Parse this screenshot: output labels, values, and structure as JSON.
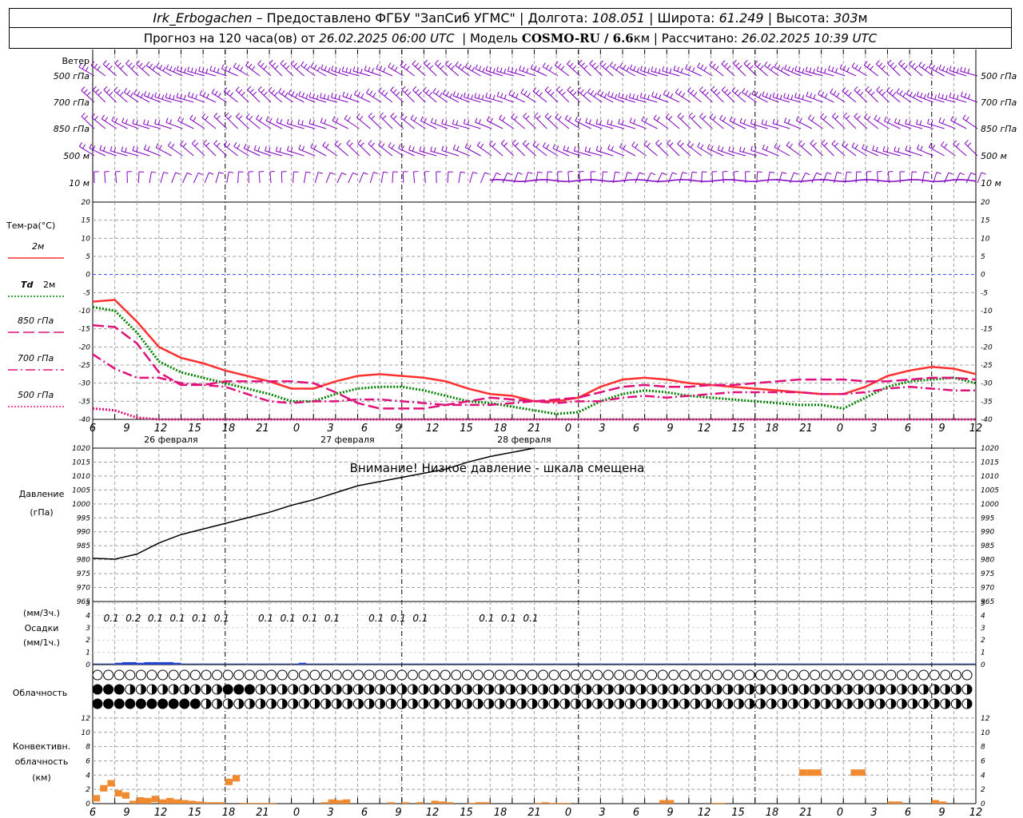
{
  "header": {
    "station": "Irk_Erbogachen",
    "dash": "–",
    "provider": "Предоставлено ФГБУ \"ЗапСиб УГМС\"",
    "lon_label": "Долгота:",
    "lon": "108.051",
    "lat_label": "Широта:",
    "lat": "61.249",
    "alt_label": "Высота:",
    "alt": "303",
    "alt_unit": "м",
    "forecast_label": "Прогноз на 120 часа(ов) от",
    "forecast_from": "26.02.2025 06:00 UTC",
    "model_label": "Модель",
    "model": "COSMO-RU / 6.6",
    "model_unit": "км",
    "calc_label": "Рассчитано:",
    "calc": "26.02.2025 10:39 UTC",
    "sep": "|"
  },
  "time_axis": {
    "hours": [
      "6",
      "9",
      "12",
      "15",
      "18",
      "21",
      "0",
      "3",
      "6",
      "9",
      "12",
      "15",
      "18",
      "21",
      "0",
      "3",
      "6",
      "9",
      "12",
      "15",
      "18",
      "21",
      "0",
      "3",
      "6",
      "9",
      "12"
    ],
    "dates": [
      "26 февраля",
      "27 февраля",
      "28 февраля"
    ]
  },
  "wind_panel": {
    "title": "Ветер",
    "levels": [
      "500 гПа",
      "700 гПа",
      "850 гПа",
      "500 м",
      "10  м"
    ],
    "color": "#8000c0"
  },
  "temp_panel": {
    "title": "Тем-ра(°C)",
    "legend": [
      {
        "label": "2м",
        "color": "#ff3030"
      },
      {
        "label": "Td  2м",
        "label_a": "Td",
        "label_b": "2м",
        "color": "#008000"
      },
      {
        "label": "850 гПа",
        "color": "#e0107a"
      },
      {
        "label": "700 гПа",
        "color": "#e0107a"
      },
      {
        "label": "500 гПа",
        "color": "#e0107a"
      }
    ],
    "yticks": [
      "20",
      "15",
      "10",
      "5",
      "0",
      "-5",
      "-10",
      "-15",
      "-20",
      "-25",
      "-30",
      "-35",
      "-40"
    ]
  },
  "pressure_panel": {
    "title1": "Давление",
    "title2": "(гПа)",
    "warning": "Внимание! Низкое давление - шкала смещена",
    "yticks": [
      "1020",
      "1015",
      "1010",
      "1005",
      "1000",
      "995",
      "990",
      "985",
      "980",
      "975",
      "970",
      "965"
    ]
  },
  "precip_panel": {
    "title1": "(мм/3ч.)",
    "title2": "Осадки",
    "title3": "(мм/1ч.)",
    "yticks": [
      "5",
      "4",
      "3",
      "2",
      "1",
      "0"
    ],
    "amounts": [
      "0.1",
      "0.2",
      "0.1",
      "0.1",
      "0.1",
      "0.1",
      "0.1",
      "0.1",
      "0.1",
      "0.1",
      "0.1",
      "0.1",
      "0.1",
      "0.1",
      "0.1",
      "0.1"
    ]
  },
  "cloud_panel": {
    "title": "Облачность"
  },
  "conv_panel": {
    "title1": "Конвективн.",
    "title2": "облачность",
    "title3": "(км)",
    "yticks": [
      "12",
      "10",
      "8",
      "6",
      "4",
      "2",
      "0"
    ]
  },
  "chart_data": [
    {
      "type": "line",
      "title": "Тем-ра(°C)",
      "x_hours_from_start": [
        0,
        3,
        6,
        9,
        12,
        15,
        18,
        21,
        24,
        27,
        30,
        33,
        36,
        39,
        42,
        45,
        48,
        51,
        54,
        57,
        60,
        63,
        66,
        69,
        72,
        75,
        78,
        81,
        84,
        87,
        90,
        93,
        96,
        99,
        102,
        105,
        108,
        111,
        114,
        117,
        120
      ],
      "ylim": [
        -40,
        20
      ],
      "series": [
        {
          "name": "2м",
          "color": "#ff3030",
          "style": "solid",
          "values": [
            -7.5,
            -7,
            -13,
            -20,
            -23,
            -24.5,
            -26.5,
            -28,
            -29.5,
            -31.5,
            -31.5,
            -29.5,
            -28,
            -27.5,
            -28,
            -28.5,
            -29.5,
            -31.5,
            -33,
            -33.5,
            -35,
            -35,
            -34,
            -31,
            -29,
            -28.5,
            -29,
            -30,
            -30.5,
            -31,
            -31.5,
            -32,
            -32.5,
            -33,
            -33,
            -31,
            -28,
            -26.5,
            -25.5,
            -26,
            -27.5
          ]
        },
        {
          "name": "Td  2м",
          "color": "#008000",
          "style": "dotted",
          "values": [
            -9,
            -10,
            -16,
            -24,
            -27,
            -28.5,
            -30,
            -31.5,
            -33,
            -35,
            -35,
            -33,
            -31.5,
            -31,
            -31,
            -32,
            -33.5,
            -35,
            -35.5,
            -36.5,
            -37.5,
            -38.5,
            -38,
            -35,
            -33,
            -32,
            -32.5,
            -33.5,
            -34,
            -34.5,
            -35,
            -35.5,
            -36,
            -36,
            -37,
            -34,
            -31,
            -29.5,
            -29,
            -28.5,
            -30
          ]
        },
        {
          "name": "850 гПа",
          "color": "#e0107a",
          "style": "longdash",
          "values": [
            -14,
            -14.5,
            -19,
            -27,
            -30.5,
            -30.5,
            -29.5,
            -29.5,
            -29.5,
            -29.5,
            -30,
            -32.5,
            -35.5,
            -37,
            -37,
            -37,
            -36,
            -35,
            -34,
            -34.5,
            -35,
            -34.5,
            -34,
            -32.5,
            -31,
            -30.5,
            -31,
            -31,
            -30.5,
            -30.5,
            -30,
            -29.5,
            -29,
            -29,
            -29,
            -29.5,
            -29.5,
            -29,
            -28.5,
            -28.5,
            -29
          ]
        },
        {
          "name": "700 гПа",
          "color": "#e0107a",
          "style": "dashdot",
          "values": [
            -22,
            -26,
            -28.5,
            -28.5,
            -30,
            -30.5,
            -31,
            -33,
            -35,
            -35.5,
            -35,
            -35,
            -34.5,
            -34.5,
            -35,
            -35.5,
            -36,
            -36,
            -36,
            -35.5,
            -35,
            -35.5,
            -35,
            -35,
            -34,
            -33.5,
            -34,
            -33.5,
            -33,
            -32.5,
            -32.5,
            -32.5,
            -32.5,
            -33,
            -33,
            -32.5,
            -31.5,
            -31,
            -31.5,
            -32,
            -32
          ]
        },
        {
          "name": "500 гПа",
          "color": "#e0107a",
          "style": "dotted",
          "values": [
            -37,
            -37.5,
            -39.5,
            -41,
            -42,
            -42,
            -42,
            -42,
            -42,
            -42,
            -42,
            -42,
            -42,
            -42,
            -42,
            -42,
            -42,
            -42,
            -42,
            -42,
            -42,
            -42,
            -42,
            -42,
            -42,
            -42,
            -42,
            -42,
            -42,
            -42,
            -42,
            -42,
            -42,
            -42,
            -42,
            -42,
            -42,
            -42,
            -42,
            -42,
            -42
          ]
        }
      ]
    },
    {
      "type": "line",
      "title": "Давление (гПа)",
      "x_hours_from_start": [
        0,
        3,
        6,
        9,
        12,
        15,
        18,
        21,
        24,
        27,
        30,
        33,
        36,
        39,
        42,
        45,
        48,
        51,
        54,
        57,
        60
      ],
      "ylim": [
        965,
        1020
      ],
      "series": [
        {
          "name": "Давление",
          "color": "#000000",
          "values": [
            980.5,
            980.2,
            982,
            986,
            989,
            991,
            993,
            995,
            997,
            999.5,
            1001.5,
            1004,
            1006.5,
            1008,
            1009.5,
            1011,
            1012.5,
            1015,
            1017,
            1018.5,
            1020.5
          ]
        }
      ]
    },
    {
      "type": "bar",
      "title": "Осадки",
      "labels_x_hours": [
        1,
        4,
        7,
        10,
        13,
        16,
        22,
        25,
        28,
        31,
        37,
        40,
        43,
        52,
        55,
        58
      ],
      "labels": [
        "0.1",
        "0.2",
        "0.1",
        "0.1",
        "0.1",
        "0.1",
        "0.1",
        "0.1",
        "0.1",
        "0.1",
        "0.1",
        "0.1",
        "0.1",
        "0.1",
        "0.1",
        "0.1"
      ],
      "hourly_mm": [
        {
          "h": 3,
          "v": 0.15
        },
        {
          "h": 4,
          "v": 0.2
        },
        {
          "h": 5,
          "v": 0.2
        },
        {
          "h": 6,
          "v": 0.15
        },
        {
          "h": 7,
          "v": 0.2
        },
        {
          "h": 8,
          "v": 0.2
        },
        {
          "h": 9,
          "v": 0.2
        },
        {
          "h": 10,
          "v": 0.2
        },
        {
          "h": 11,
          "v": 0.15
        },
        {
          "h": 28,
          "v": 0.15
        }
      ],
      "ylim": [
        0,
        5
      ]
    },
    {
      "type": "bar",
      "title": "Конвективн. облачность (км)",
      "color": "#f08a30",
      "ylim": [
        0,
        13
      ],
      "segments": [
        {
          "from": 0,
          "to": 1,
          "v": 1.2
        },
        {
          "from": 1,
          "to": 2,
          "v": 2.6
        },
        {
          "from": 2,
          "to": 3,
          "v": 3.3
        },
        {
          "from": 3,
          "to": 4,
          "v": 1.9
        },
        {
          "from": 4,
          "to": 5,
          "v": 1.6
        },
        {
          "from": 5,
          "to": 6,
          "v": 0.4
        },
        {
          "from": 6,
          "to": 7,
          "v": 0.9
        },
        {
          "from": 7,
          "to": 8,
          "v": 0.8
        },
        {
          "from": 8,
          "to": 9,
          "v": 1.1
        },
        {
          "from": 9,
          "to": 10,
          "v": 0.6
        },
        {
          "from": 10,
          "to": 11,
          "v": 0.8
        },
        {
          "from": 11,
          "to": 12,
          "v": 0.6
        },
        {
          "from": 12,
          "to": 13,
          "v": 0.5
        },
        {
          "from": 13,
          "to": 14,
          "v": 0.4
        },
        {
          "from": 14,
          "to": 15,
          "v": 0.3
        },
        {
          "from": 15,
          "to": 16,
          "v": 0.2
        },
        {
          "from": 16,
          "to": 17,
          "v": 0.2
        },
        {
          "from": 17,
          "to": 18,
          "v": 0.2
        },
        {
          "from": 18,
          "to": 19,
          "v": 3.5
        },
        {
          "from": 19,
          "to": 20,
          "v": 4.0
        },
        {
          "from": 20,
          "to": 21,
          "v": 0.1
        },
        {
          "from": 21,
          "to": 22,
          "v": 0.1
        },
        {
          "from": 22,
          "to": 23,
          "v": 0.1
        },
        {
          "from": 23,
          "to": 24,
          "v": 0.1
        },
        {
          "from": 24,
          "to": 25,
          "v": 0.1
        },
        {
          "from": 31,
          "to": 32,
          "v": 0.2
        },
        {
          "from": 32,
          "to": 33,
          "v": 0.6
        },
        {
          "from": 33,
          "to": 34,
          "v": 0.5
        },
        {
          "from": 34,
          "to": 35,
          "v": 0.6
        },
        {
          "from": 40,
          "to": 41,
          "v": 0.2
        },
        {
          "from": 42,
          "to": 43,
          "v": 0.2
        },
        {
          "from": 44,
          "to": 45,
          "v": 0.2
        },
        {
          "from": 46,
          "to": 47,
          "v": 0.4
        },
        {
          "from": 47,
          "to": 48,
          "v": 0.3
        },
        {
          "from": 48,
          "to": 49,
          "v": 0.2
        },
        {
          "from": 51,
          "to": 52,
          "v": 0.1
        },
        {
          "from": 52,
          "to": 53,
          "v": 0.2
        },
        {
          "from": 53,
          "to": 54,
          "v": 0.2
        },
        {
          "from": 60,
          "to": 61,
          "v": 0.1
        },
        {
          "from": 61,
          "to": 62,
          "v": 0.2
        },
        {
          "from": 62,
          "to": 63,
          "v": 0.1
        },
        {
          "from": 63,
          "to": 64,
          "v": 0.1
        },
        {
          "from": 64,
          "to": 65,
          "v": 0.1
        },
        {
          "from": 77,
          "to": 78,
          "v": 0.5
        },
        {
          "from": 78,
          "to": 79,
          "v": 0.5
        },
        {
          "from": 84,
          "to": 85,
          "v": 0.1
        },
        {
          "from": 85,
          "to": 86,
          "v": 0.1
        },
        {
          "from": 96,
          "to": 97,
          "v": 4.8
        },
        {
          "from": 97,
          "to": 98,
          "v": 4.8
        },
        {
          "from": 98,
          "to": 99,
          "v": 4.8
        },
        {
          "from": 103,
          "to": 104,
          "v": 4.8
        },
        {
          "from": 104,
          "to": 105,
          "v": 4.8
        },
        {
          "from": 108,
          "to": 109,
          "v": 0.3
        },
        {
          "from": 109,
          "to": 110,
          "v": 0.3
        },
        {
          "from": 114,
          "to": 115,
          "v": 0.5
        },
        {
          "from": 115,
          "to": 116,
          "v": 0.3
        }
      ]
    }
  ]
}
